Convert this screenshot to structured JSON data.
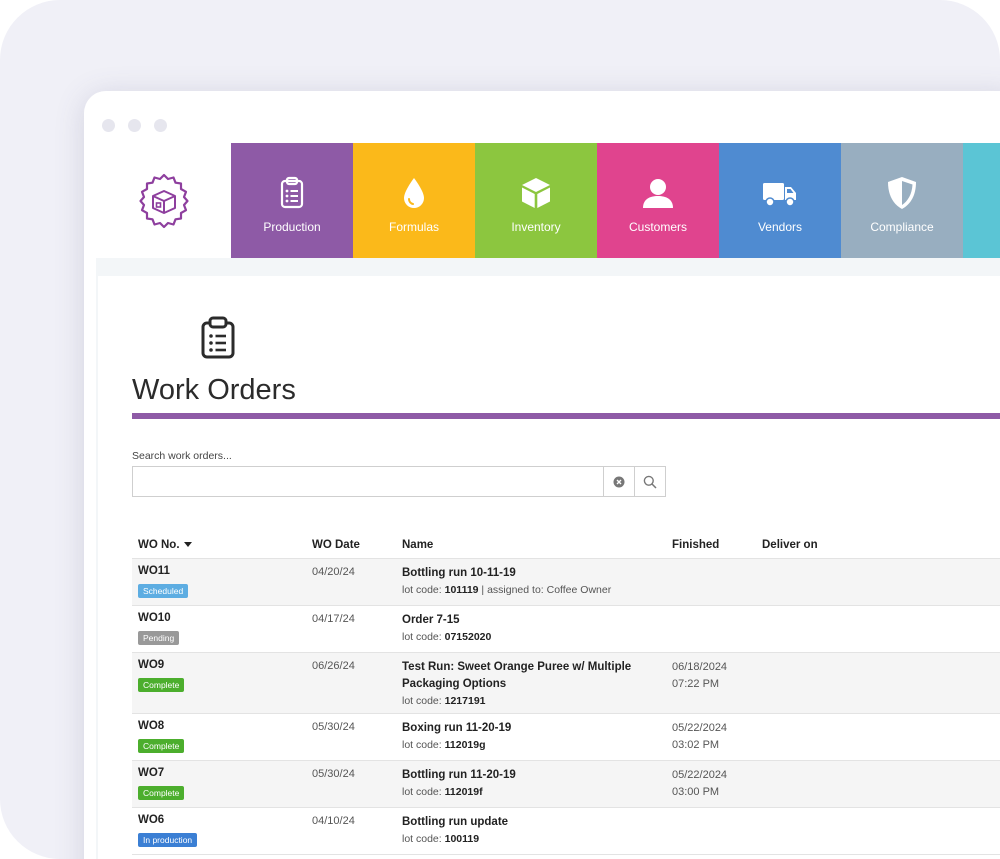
{
  "nav": {
    "tiles": [
      {
        "label": "Production",
        "icon": "clipboard-list-icon",
        "color": "#8e5aa6"
      },
      {
        "label": "Formulas",
        "icon": "drop-icon",
        "color": "#fbb91a"
      },
      {
        "label": "Inventory",
        "icon": "box-icon",
        "color": "#8cc63f"
      },
      {
        "label": "Customers",
        "icon": "person-icon",
        "color": "#e0448e"
      },
      {
        "label": "Vendors",
        "icon": "truck-icon",
        "color": "#4f8bd1"
      },
      {
        "label": "Compliance",
        "icon": "shield-icon",
        "color": "#98aec0"
      },
      {
        "label": "",
        "icon": "",
        "color": "#5bc5d5"
      }
    ]
  },
  "page": {
    "title": "Work Orders",
    "accent": "#8e5aa6"
  },
  "search": {
    "label": "Search work orders...",
    "value": "",
    "placeholder": ""
  },
  "table": {
    "headers": {
      "wo_no": "WO No.",
      "wo_date": "WO Date",
      "name": "Name",
      "finished": "Finished",
      "deliver_on": "Deliver on"
    },
    "rows": [
      {
        "wo": "WO11",
        "status": "Scheduled",
        "status_color": "#5dade2",
        "date": "04/20/24",
        "name": "Bottling run 10-11-19",
        "lot_label": "lot code: ",
        "lot": "101119",
        "extra": " | assigned to: Coffee Owner",
        "finished_date": "",
        "finished_time": ""
      },
      {
        "wo": "WO10",
        "status": "Pending",
        "status_color": "#999999",
        "date": "04/17/24",
        "name": "Order 7-15",
        "lot_label": "lot code: ",
        "lot": "07152020",
        "extra": "",
        "finished_date": "",
        "finished_time": ""
      },
      {
        "wo": "WO9",
        "status": "Complete",
        "status_color": "#4cae2d",
        "date": "06/26/24",
        "name": "Test Run: Sweet Orange Puree w/ Multiple Packaging Options",
        "lot_label": "lot code: ",
        "lot": "1217191",
        "extra": "",
        "finished_date": "06/18/2024",
        "finished_time": "07:22 PM"
      },
      {
        "wo": "WO8",
        "status": "Complete",
        "status_color": "#4cae2d",
        "date": "05/30/24",
        "name": "Boxing run 11-20-19",
        "lot_label": "lot code: ",
        "lot": "112019g",
        "extra": "",
        "finished_date": "05/22/2024",
        "finished_time": "03:02 PM"
      },
      {
        "wo": "WO7",
        "status": "Complete",
        "status_color": "#4cae2d",
        "date": "05/30/24",
        "name": "Bottling run 11-20-19",
        "lot_label": "lot code: ",
        "lot": "112019f",
        "extra": "",
        "finished_date": "05/22/2024",
        "finished_time": "03:00 PM"
      },
      {
        "wo": "WO6",
        "status": "In production",
        "status_color": "#3b7fd4",
        "date": "04/10/24",
        "name": "Bottling run update",
        "lot_label": "lot code: ",
        "lot": "100119",
        "extra": "",
        "finished_date": "",
        "finished_time": ""
      }
    ]
  }
}
